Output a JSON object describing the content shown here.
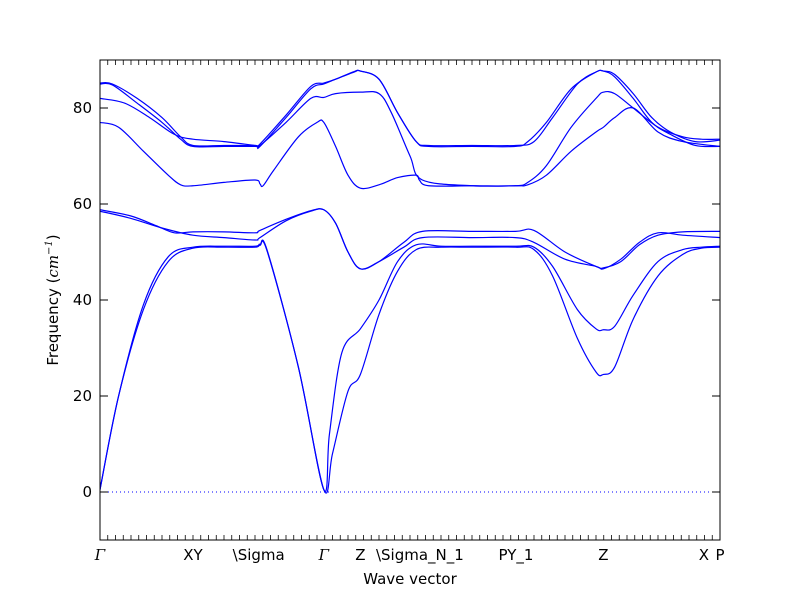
{
  "chart_data": {
    "type": "line",
    "title": "",
    "xlabel": "Wave vector",
    "ylabel_prefix": "Frequency (",
    "ylabel_unit": "cm",
    "ylabel_exp": "−1",
    "ylabel_suffix": ")",
    "ylim": [
      -10,
      90
    ],
    "xlim": [
      0,
      1
    ],
    "y_ticks": [
      0,
      20,
      40,
      60,
      80
    ],
    "y_tick_labels": [
      "0",
      "20",
      "40",
      "60",
      "80"
    ],
    "x_labels": [
      {
        "label": "Γ",
        "x": 0.0
      },
      {
        "label": "XY",
        "x": 0.15
      },
      {
        "label": "\\Sigma",
        "x": 0.256
      },
      {
        "label": "Γ",
        "x": 0.361
      },
      {
        "label": "Z",
        "x": 0.42
      },
      {
        "label": "\\Sigma_N_1",
        "x": 0.516
      },
      {
        "label": "PY_1",
        "x": 0.671
      },
      {
        "label": "Z",
        "x": 0.812
      },
      {
        "label": "X",
        "x": 0.974
      },
      {
        "label": "P",
        "x": 1.0
      }
    ],
    "zero_line": 0,
    "series": [
      {
        "color": "#0000ff",
        "points": [
          [
            0,
            0.5
          ],
          [
            0.03,
            20
          ],
          [
            0.07,
            38
          ],
          [
            0.11,
            48
          ],
          [
            0.15,
            50.8
          ],
          [
            0.2,
            51
          ],
          [
            0.25,
            51
          ],
          [
            0.258,
            51.4
          ],
          [
            0.27,
            50
          ],
          [
            0.32,
            26
          ],
          [
            0.361,
            0.5
          ],
          [
            0.375,
            8
          ],
          [
            0.4,
            21
          ],
          [
            0.42,
            24.5
          ],
          [
            0.45,
            37
          ],
          [
            0.48,
            46
          ],
          [
            0.51,
            50.5
          ],
          [
            0.55,
            51
          ],
          [
            0.6,
            51
          ],
          [
            0.67,
            51
          ],
          [
            0.7,
            50.5
          ],
          [
            0.73,
            45
          ],
          [
            0.77,
            32
          ],
          [
            0.8,
            25
          ],
          [
            0.812,
            24.5
          ],
          [
            0.83,
            26
          ],
          [
            0.86,
            36
          ],
          [
            0.9,
            45
          ],
          [
            0.94,
            49.5
          ],
          [
            0.97,
            50.8
          ],
          [
            1.0,
            51
          ]
        ]
      },
      {
        "color": "#0000ff",
        "points": [
          [
            0,
            0.5
          ],
          [
            0.03,
            20
          ],
          [
            0.07,
            39
          ],
          [
            0.11,
            49
          ],
          [
            0.15,
            51
          ],
          [
            0.2,
            51.2
          ],
          [
            0.25,
            51.2
          ],
          [
            0.258,
            51.6
          ],
          [
            0.27,
            50.2
          ],
          [
            0.32,
            26
          ],
          [
            0.361,
            0.5
          ],
          [
            0.37,
            12
          ],
          [
            0.39,
            29
          ],
          [
            0.42,
            34
          ],
          [
            0.45,
            40
          ],
          [
            0.48,
            48
          ],
          [
            0.51,
            51.5
          ],
          [
            0.55,
            51.2
          ],
          [
            0.6,
            51.2
          ],
          [
            0.67,
            51.2
          ],
          [
            0.7,
            51
          ],
          [
            0.73,
            47
          ],
          [
            0.77,
            38
          ],
          [
            0.8,
            34
          ],
          [
            0.812,
            33.8
          ],
          [
            0.83,
            34.5
          ],
          [
            0.86,
            41
          ],
          [
            0.9,
            48
          ],
          [
            0.94,
            50.5
          ],
          [
            0.97,
            51
          ],
          [
            1.0,
            51.2
          ]
        ]
      },
      {
        "color": "#0000ff",
        "points": [
          [
            0,
            58.5
          ],
          [
            0.05,
            57
          ],
          [
            0.1,
            55
          ],
          [
            0.15,
            53.5
          ],
          [
            0.2,
            53
          ],
          [
            0.25,
            52.5
          ],
          [
            0.258,
            53
          ],
          [
            0.3,
            56.5
          ],
          [
            0.34,
            58.5
          ],
          [
            0.361,
            58.8
          ],
          [
            0.38,
            56
          ],
          [
            0.4,
            50
          ],
          [
            0.42,
            46.5
          ],
          [
            0.45,
            48
          ],
          [
            0.49,
            51
          ],
          [
            0.52,
            53
          ],
          [
            0.6,
            53
          ],
          [
            0.67,
            53
          ],
          [
            0.7,
            52
          ],
          [
            0.75,
            48.5
          ],
          [
            0.8,
            47
          ],
          [
            0.812,
            46.5
          ],
          [
            0.84,
            48.5
          ],
          [
            0.87,
            52
          ],
          [
            0.9,
            54
          ],
          [
            0.94,
            53.5
          ],
          [
            1.0,
            53
          ]
        ]
      },
      {
        "color": "#0000ff",
        "points": [
          [
            0,
            58.8
          ],
          [
            0.05,
            57.5
          ],
          [
            0.09,
            55.5
          ],
          [
            0.12,
            54
          ],
          [
            0.15,
            54.2
          ],
          [
            0.2,
            54.2
          ],
          [
            0.25,
            54
          ],
          [
            0.258,
            54.5
          ],
          [
            0.3,
            56.8
          ],
          [
            0.34,
            58.6
          ],
          [
            0.361,
            58.8
          ],
          [
            0.38,
            56
          ],
          [
            0.4,
            50
          ],
          [
            0.42,
            46.5
          ],
          [
            0.45,
            48
          ],
          [
            0.49,
            52
          ],
          [
            0.52,
            54.3
          ],
          [
            0.6,
            54.3
          ],
          [
            0.67,
            54.3
          ],
          [
            0.7,
            54.5
          ],
          [
            0.75,
            50
          ],
          [
            0.8,
            47
          ],
          [
            0.812,
            46.7
          ],
          [
            0.84,
            48
          ],
          [
            0.87,
            51.5
          ],
          [
            0.9,
            53.5
          ],
          [
            0.94,
            54.2
          ],
          [
            1.0,
            54.3
          ]
        ]
      },
      {
        "color": "#0000ff",
        "points": [
          [
            0,
            77
          ],
          [
            0.03,
            76
          ],
          [
            0.07,
            71
          ],
          [
            0.11,
            66
          ],
          [
            0.13,
            64
          ],
          [
            0.15,
            63.8
          ],
          [
            0.2,
            64.5
          ],
          [
            0.25,
            65
          ],
          [
            0.258,
            64.2
          ],
          [
            0.263,
            63.8
          ],
          [
            0.28,
            67
          ],
          [
            0.32,
            74
          ],
          [
            0.35,
            77
          ],
          [
            0.361,
            77
          ],
          [
            0.38,
            72
          ],
          [
            0.4,
            66
          ],
          [
            0.42,
            63.3
          ],
          [
            0.45,
            64
          ],
          [
            0.48,
            65.5
          ],
          [
            0.51,
            66
          ],
          [
            0.515,
            65
          ],
          [
            0.53,
            63.8
          ],
          [
            0.6,
            63.8
          ],
          [
            0.67,
            63.8
          ],
          [
            0.69,
            64.5
          ],
          [
            0.72,
            68
          ],
          [
            0.76,
            76
          ],
          [
            0.8,
            82
          ],
          [
            0.812,
            83.3
          ],
          [
            0.83,
            83
          ],
          [
            0.86,
            80
          ],
          [
            0.9,
            76
          ],
          [
            0.94,
            74
          ],
          [
            0.97,
            73.5
          ],
          [
            1.0,
            73.5
          ]
        ]
      },
      {
        "color": "#0000ff",
        "points": [
          [
            0,
            82
          ],
          [
            0.04,
            81
          ],
          [
            0.08,
            78
          ],
          [
            0.12,
            74.5
          ],
          [
            0.15,
            73.5
          ],
          [
            0.2,
            73
          ],
          [
            0.25,
            72.2
          ],
          [
            0.258,
            72.2
          ],
          [
            0.3,
            77
          ],
          [
            0.34,
            82
          ],
          [
            0.361,
            82.2
          ],
          [
            0.38,
            83
          ],
          [
            0.42,
            83.3
          ],
          [
            0.45,
            83
          ],
          [
            0.47,
            79
          ],
          [
            0.5,
            70
          ],
          [
            0.52,
            65
          ],
          [
            0.6,
            63.8
          ],
          [
            0.67,
            63.8
          ],
          [
            0.69,
            64
          ],
          [
            0.72,
            66
          ],
          [
            0.76,
            71
          ],
          [
            0.8,
            75
          ],
          [
            0.812,
            76
          ],
          [
            0.83,
            78
          ],
          [
            0.86,
            80
          ],
          [
            0.9,
            75
          ],
          [
            0.94,
            73
          ],
          [
            1.0,
            72
          ]
        ]
      },
      {
        "color": "#0000ff",
        "points": [
          [
            0,
            85
          ],
          [
            0.02,
            84.8
          ],
          [
            0.06,
            81
          ],
          [
            0.1,
            77
          ],
          [
            0.13,
            73.5
          ],
          [
            0.15,
            72
          ],
          [
            0.2,
            72
          ],
          [
            0.25,
            72
          ],
          [
            0.258,
            72
          ],
          [
            0.3,
            78
          ],
          [
            0.34,
            84
          ],
          [
            0.361,
            85
          ],
          [
            0.38,
            86
          ],
          [
            0.41,
            87.5
          ],
          [
            0.42,
            87.7
          ],
          [
            0.45,
            86
          ],
          [
            0.48,
            79
          ],
          [
            0.51,
            73
          ],
          [
            0.53,
            72
          ],
          [
            0.6,
            72
          ],
          [
            0.67,
            72
          ],
          [
            0.69,
            73
          ],
          [
            0.72,
            77
          ],
          [
            0.76,
            84
          ],
          [
            0.8,
            87.5
          ],
          [
            0.812,
            87.7
          ],
          [
            0.83,
            87
          ],
          [
            0.86,
            83
          ],
          [
            0.89,
            78
          ],
          [
            0.92,
            75
          ],
          [
            0.96,
            73
          ],
          [
            1.0,
            73.3
          ]
        ]
      },
      {
        "color": "#0000ff",
        "points": [
          [
            0,
            85.2
          ],
          [
            0.02,
            85
          ],
          [
            0.06,
            82
          ],
          [
            0.1,
            78
          ],
          [
            0.13,
            74
          ],
          [
            0.15,
            72.2
          ],
          [
            0.2,
            72.2
          ],
          [
            0.25,
            72.2
          ],
          [
            0.258,
            72.5
          ],
          [
            0.3,
            78.5
          ],
          [
            0.34,
            84.5
          ],
          [
            0.361,
            85.2
          ],
          [
            0.38,
            86
          ],
          [
            0.41,
            87.6
          ],
          [
            0.42,
            87.7
          ],
          [
            0.45,
            86
          ],
          [
            0.48,
            79
          ],
          [
            0.51,
            73
          ],
          [
            0.53,
            72.2
          ],
          [
            0.6,
            72.2
          ],
          [
            0.67,
            72.2
          ],
          [
            0.7,
            73
          ],
          [
            0.73,
            78
          ],
          [
            0.77,
            85
          ],
          [
            0.8,
            87.5
          ],
          [
            0.812,
            87.7
          ],
          [
            0.83,
            86.5
          ],
          [
            0.86,
            82
          ],
          [
            0.89,
            77
          ],
          [
            0.92,
            74.5
          ],
          [
            0.96,
            72.2
          ],
          [
            1.0,
            72
          ]
        ]
      }
    ]
  }
}
